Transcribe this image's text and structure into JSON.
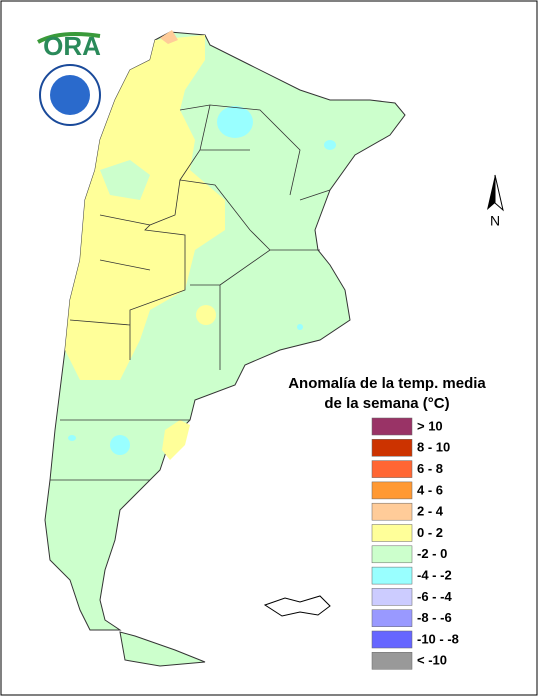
{
  "logo": {
    "text": "ORA"
  },
  "north_arrow": {
    "label": "N"
  },
  "legend": {
    "title": [
      "Anomalía de la temp. media",
      "de la semana (°C)"
    ],
    "items": [
      {
        "label": "> 10",
        "color": "#993366"
      },
      {
        "label": "8 - 10",
        "color": "#cc3300"
      },
      {
        "label": "6 - 8",
        "color": "#ff6633"
      },
      {
        "label": "4 - 6",
        "color": "#ff9933"
      },
      {
        "label": "2 - 4",
        "color": "#ffcc99"
      },
      {
        "label": "0 - 2",
        "color": "#ffff99"
      },
      {
        "label": "-2 - 0",
        "color": "#ccffcc"
      },
      {
        "label": "-4 - -2",
        "color": "#99ffff"
      },
      {
        "label": "-6 - -4",
        "color": "#ccccff"
      },
      {
        "label": "-8 - -6",
        "color": "#9999ff"
      },
      {
        "label": "-10 - -8",
        "color": "#6666ff"
      },
      {
        "label": "< -10",
        "color": "#999999"
      }
    ]
  }
}
